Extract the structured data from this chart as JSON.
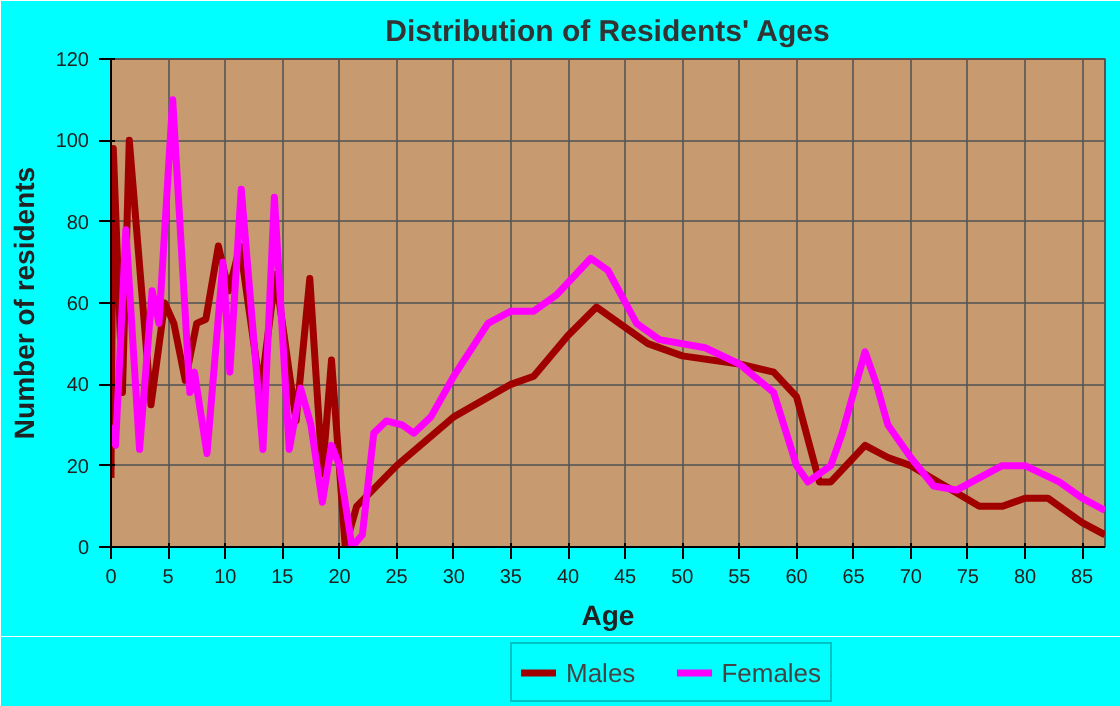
{
  "chart_data": {
    "type": "line",
    "title": "Distribution of Residents' Ages",
    "xlabel": "Age",
    "ylabel": "Number of residents",
    "xlim": [
      0,
      87
    ],
    "xticks": [
      0,
      5,
      10,
      15,
      20,
      25,
      30,
      35,
      40,
      45,
      50,
      55,
      60,
      65,
      70,
      75,
      80,
      85
    ],
    "ylim": [
      0,
      120
    ],
    "yticks": [
      0,
      20,
      40,
      60,
      80,
      100,
      120
    ],
    "grid": true,
    "legend": "bottom",
    "line_style": "solid",
    "series": [
      {
        "name": "Males",
        "color": "#a00000",
        "x": [
          0,
          0.2,
          1,
          1.6,
          3.5,
          4.7,
          5.5,
          6.5,
          7.5,
          8.3,
          9.4,
          10.3,
          11.3,
          13.1,
          14.4,
          16.2,
          17.4,
          18.5,
          19.3,
          20.5,
          21.5,
          25,
          30,
          35,
          37,
          40,
          42.5,
          45,
          47,
          50,
          55,
          58,
          60,
          62,
          63,
          66,
          68,
          70,
          73,
          76,
          78,
          80,
          82,
          85,
          87
        ],
        "values": [
          17,
          98,
          38,
          100,
          35,
          60,
          55,
          41,
          55,
          56,
          74,
          63,
          74,
          38,
          67,
          31,
          66,
          18,
          46,
          0,
          10,
          20,
          32,
          40,
          42,
          52,
          59,
          54,
          50,
          47,
          45,
          43,
          37,
          16,
          16,
          25,
          22,
          20,
          15,
          10,
          10,
          12,
          12,
          6,
          3
        ]
      },
      {
        "name": "Females",
        "color": "#ff00ff",
        "x": [
          0,
          0.4,
          1.3,
          2.5,
          3.6,
          4.2,
          5.4,
          6.9,
          7.3,
          8.4,
          9.8,
          10.4,
          11.4,
          13.3,
          14.3,
          15.6,
          16.6,
          17.5,
          18.5,
          19.3,
          20,
          21.1,
          22,
          23,
          24.1,
          25.5,
          26.5,
          28,
          30,
          33,
          35,
          37,
          39,
          42,
          43.5,
          46,
          48,
          52,
          55,
          58,
          60,
          61,
          63,
          64,
          66,
          67,
          68,
          70,
          72,
          74,
          76,
          78,
          80,
          83,
          85,
          87
        ],
        "values": [
          30,
          25,
          78,
          24,
          63,
          55,
          110,
          38,
          43,
          23,
          70,
          43,
          88,
          24,
          86,
          24,
          39,
          30,
          11,
          25,
          20,
          0,
          3,
          28,
          31,
          30,
          28,
          32,
          42,
          55,
          58,
          58,
          62,
          71,
          68,
          55,
          51,
          49,
          45,
          38,
          20,
          16,
          20,
          28,
          48,
          40,
          30,
          22,
          15,
          14,
          17,
          20,
          20,
          16,
          12,
          9
        ]
      }
    ]
  }
}
